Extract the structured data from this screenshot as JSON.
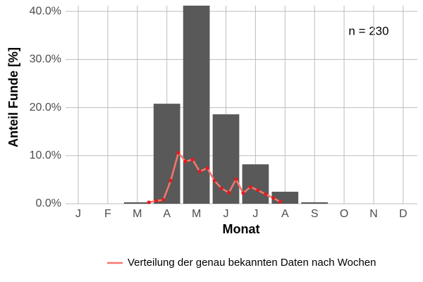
{
  "chart_data": {
    "type": "bar",
    "annotation": "n = 230",
    "xlabel": "Monat",
    "ylabel": "Anteil Funde [%]",
    "categories": [
      "J",
      "F",
      "M",
      "A",
      "M",
      "J",
      "J",
      "A",
      "S",
      "O",
      "N",
      "D"
    ],
    "values": [
      null,
      null,
      0.3,
      20.8,
      41.2,
      18.6,
      8.2,
      2.5,
      0.3,
      null,
      null,
      null
    ],
    "color": "#595959",
    "xlim": [
      0.57,
      12.48
    ],
    "ylim": [
      0,
      41.2
    ],
    "yticks": [
      {
        "value": 0,
        "label": "0.0%"
      },
      {
        "value": 10,
        "label": "10.0%"
      },
      {
        "value": 20,
        "label": "20.0%"
      },
      {
        "value": 30,
        "label": "30.0%"
      },
      {
        "value": 40,
        "label": "40.0%"
      }
    ],
    "grid": true,
    "legend": "bottom",
    "series": [
      {
        "name": "Verteilung der genau bekannten Daten nach Wochen",
        "color": "#f8766d",
        "point_color": "#e41a1c",
        "x": [
          3.39,
          3.64,
          3.88,
          4.13,
          4.39,
          4.63,
          4.87,
          5.11,
          5.37,
          5.61,
          5.85,
          6.1,
          6.34,
          6.58,
          6.83,
          7.08,
          7.34,
          7.6,
          7.84
        ],
        "values": [
          0.3,
          0.6,
          0.8,
          4.8,
          10.6,
          8.8,
          9.2,
          6.7,
          7.4,
          4.8,
          3.2,
          2.3,
          5.1,
          2.2,
          3.5,
          2.8,
          2.0,
          1.2,
          0.4
        ]
      }
    ]
  }
}
